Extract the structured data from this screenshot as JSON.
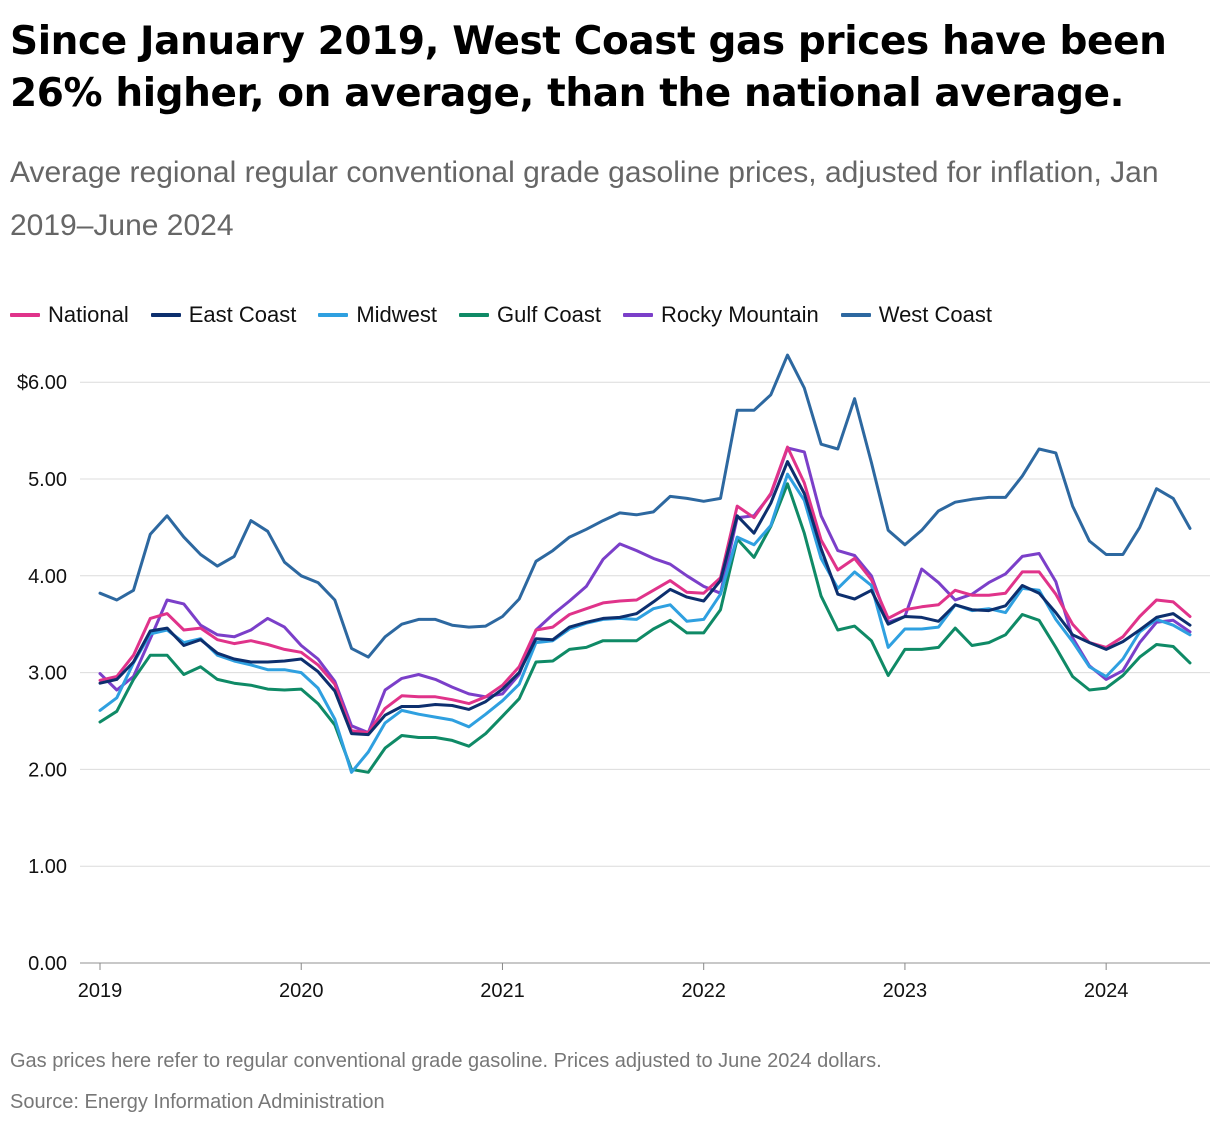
{
  "title": "Since January 2019, West Coast gas prices have been 26% higher, on average, than the national average.",
  "subtitle": "Average regional regular conventional grade gasoline prices, adjusted for inflation, Jan 2019–June 2024",
  "footnote": "Gas prices here refer to regular conventional grade gasoline. Prices adjusted to June 2024 dollars.",
  "source": "Source: Energy Information Administration",
  "chart_data": {
    "type": "line",
    "title": "Since January 2019, West Coast gas prices have been 26% higher, on average, than the national average.",
    "xlabel": "",
    "ylabel": "",
    "x_start": "2019-01",
    "months": 66,
    "ylim": [
      0,
      6.3
    ],
    "yticks": [
      0,
      1,
      2,
      3,
      4,
      5,
      6
    ],
    "ytick_labels": [
      "0.00",
      "1.00",
      "2.00",
      "3.00",
      "4.00",
      "5.00",
      "$6.00"
    ],
    "xtick_labels": [
      "2019",
      "2020",
      "2021",
      "2022",
      "2023",
      "2024"
    ],
    "legend_position": "top-left",
    "grid": true,
    "series": [
      {
        "name": "West Coast",
        "color": "#2d68a0",
        "values": [
          3.82,
          3.75,
          3.85,
          4.43,
          4.62,
          4.4,
          4.22,
          4.1,
          4.2,
          4.57,
          4.46,
          4.14,
          4.0,
          3.93,
          3.75,
          3.25,
          3.16,
          3.37,
          3.5,
          3.55,
          3.55,
          3.49,
          3.47,
          3.48,
          3.58,
          3.76,
          4.15,
          4.26,
          4.4,
          4.48,
          4.57,
          4.65,
          4.63,
          4.66,
          4.82,
          4.8,
          4.77,
          4.8,
          5.71,
          5.71,
          5.87,
          6.28,
          5.94,
          5.36,
          5.31,
          5.83,
          5.17,
          4.47,
          4.32,
          4.47,
          4.67,
          4.76,
          4.79,
          4.81,
          4.81,
          5.03,
          5.31,
          5.27,
          4.72,
          4.36,
          4.22,
          4.22,
          4.5,
          4.9,
          4.8,
          4.49
        ]
      },
      {
        "name": "Rocky Mountain",
        "color": "#7b3fc9",
        "values": [
          2.99,
          2.82,
          2.96,
          3.35,
          3.75,
          3.71,
          3.49,
          3.39,
          3.37,
          3.44,
          3.56,
          3.47,
          3.28,
          3.14,
          2.91,
          2.45,
          2.38,
          2.82,
          2.94,
          2.98,
          2.93,
          2.85,
          2.78,
          2.75,
          2.78,
          2.98,
          3.44,
          3.6,
          3.74,
          3.89,
          4.17,
          4.33,
          4.26,
          4.18,
          4.12,
          4.0,
          3.89,
          3.82,
          4.6,
          4.62,
          4.84,
          5.32,
          5.28,
          4.62,
          4.26,
          4.21,
          4.0,
          3.52,
          3.58,
          4.07,
          3.93,
          3.75,
          3.81,
          3.93,
          4.02,
          4.2,
          4.23,
          3.94,
          3.36,
          3.07,
          2.93,
          3.02,
          3.31,
          3.52,
          3.54,
          3.42
        ]
      },
      {
        "name": "National",
        "color": "#e0338a",
        "values": [
          2.92,
          2.96,
          3.18,
          3.56,
          3.61,
          3.44,
          3.46,
          3.34,
          3.3,
          3.33,
          3.29,
          3.24,
          3.21,
          3.08,
          2.88,
          2.4,
          2.38,
          2.63,
          2.76,
          2.75,
          2.75,
          2.72,
          2.68,
          2.75,
          2.87,
          3.06,
          3.44,
          3.47,
          3.6,
          3.66,
          3.72,
          3.74,
          3.75,
          3.85,
          3.95,
          3.83,
          3.82,
          3.98,
          4.72,
          4.6,
          4.85,
          5.33,
          4.96,
          4.37,
          4.06,
          4.18,
          3.96,
          3.56,
          3.65,
          3.68,
          3.7,
          3.85,
          3.8,
          3.8,
          3.82,
          4.04,
          4.04,
          3.81,
          3.5,
          3.31,
          3.26,
          3.37,
          3.58,
          3.75,
          3.73,
          3.58
        ]
      },
      {
        "name": "East Coast",
        "color": "#0d2f6e",
        "values": [
          2.89,
          2.93,
          3.11,
          3.43,
          3.46,
          3.28,
          3.34,
          3.2,
          3.14,
          3.11,
          3.11,
          3.12,
          3.14,
          3.01,
          2.81,
          2.37,
          2.36,
          2.56,
          2.65,
          2.65,
          2.67,
          2.66,
          2.62,
          2.7,
          2.83,
          3.0,
          3.35,
          3.34,
          3.47,
          3.52,
          3.56,
          3.57,
          3.61,
          3.73,
          3.86,
          3.78,
          3.74,
          3.95,
          4.62,
          4.44,
          4.75,
          5.18,
          4.85,
          4.28,
          3.81,
          3.76,
          3.85,
          3.5,
          3.58,
          3.57,
          3.53,
          3.7,
          3.65,
          3.64,
          3.69,
          3.9,
          3.82,
          3.62,
          3.39,
          3.31,
          3.24,
          3.32,
          3.44,
          3.57,
          3.61,
          3.49
        ]
      },
      {
        "name": "Midwest",
        "color": "#2fa0e0",
        "values": [
          2.61,
          2.74,
          3.1,
          3.4,
          3.44,
          3.31,
          3.35,
          3.18,
          3.12,
          3.08,
          3.03,
          3.03,
          3.0,
          2.84,
          2.52,
          1.97,
          2.18,
          2.48,
          2.61,
          2.57,
          2.54,
          2.51,
          2.44,
          2.57,
          2.71,
          2.88,
          3.31,
          3.33,
          3.45,
          3.51,
          3.55,
          3.56,
          3.55,
          3.66,
          3.7,
          3.53,
          3.55,
          3.81,
          4.4,
          4.32,
          4.52,
          5.05,
          4.78,
          4.18,
          3.87,
          4.04,
          3.9,
          3.26,
          3.45,
          3.45,
          3.47,
          3.7,
          3.64,
          3.66,
          3.62,
          3.87,
          3.85,
          3.55,
          3.32,
          3.06,
          2.96,
          3.14,
          3.42,
          3.55,
          3.49,
          3.39
        ]
      },
      {
        "name": "Gulf Coast",
        "color": "#0f8a66",
        "values": [
          2.49,
          2.6,
          2.93,
          3.18,
          3.18,
          2.98,
          3.06,
          2.93,
          2.89,
          2.87,
          2.83,
          2.82,
          2.83,
          2.68,
          2.46,
          2.0,
          1.97,
          2.22,
          2.35,
          2.33,
          2.33,
          2.3,
          2.24,
          2.37,
          2.55,
          2.73,
          3.11,
          3.12,
          3.24,
          3.26,
          3.33,
          3.33,
          3.33,
          3.45,
          3.54,
          3.41,
          3.41,
          3.65,
          4.38,
          4.19,
          4.51,
          4.95,
          4.44,
          3.79,
          3.44,
          3.48,
          3.33,
          2.97,
          3.24,
          3.24,
          3.26,
          3.46,
          3.28,
          3.31,
          3.39,
          3.6,
          3.54,
          3.26,
          2.96,
          2.82,
          2.84,
          2.97,
          3.16,
          3.29,
          3.27,
          3.1
        ]
      }
    ]
  }
}
